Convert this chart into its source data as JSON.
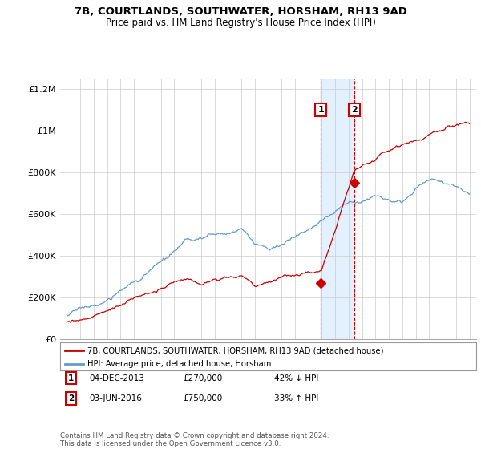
{
  "title": "7B, COURTLANDS, SOUTHWATER, HORSHAM, RH13 9AD",
  "subtitle": "Price paid vs. HM Land Registry's House Price Index (HPI)",
  "legend_line1": "7B, COURTLANDS, SOUTHWATER, HORSHAM, RH13 9AD (detached house)",
  "legend_line2": "HPI: Average price, detached house, Horsham",
  "transaction1_label": "1",
  "transaction1_date": "04-DEC-2013",
  "transaction1_price": "£270,000",
  "transaction1_hpi": "42% ↓ HPI",
  "transaction1_year": 2013.92,
  "transaction1_value": 270000,
  "transaction2_label": "2",
  "transaction2_date": "03-JUN-2016",
  "transaction2_price": "£750,000",
  "transaction2_hpi": "33% ↑ HPI",
  "transaction2_year": 2016.42,
  "transaction2_value": 750000,
  "price_color": "#cc0000",
  "hpi_color": "#6699cc",
  "highlight_fill": "#ddeeff",
  "ylim": [
    0,
    1250000
  ],
  "yticks": [
    0,
    200000,
    400000,
    600000,
    800000,
    1000000,
    1200000
  ],
  "ytick_labels": [
    "£0",
    "£200K",
    "£400K",
    "£600K",
    "£800K",
    "£1M",
    "£1.2M"
  ],
  "xlim_left": 1994.5,
  "xlim_right": 2025.5,
  "footer": "Contains HM Land Registry data © Crown copyright and database right 2024.\nThis data is licensed under the Open Government Licence v3.0.",
  "background_color": "#ffffff"
}
